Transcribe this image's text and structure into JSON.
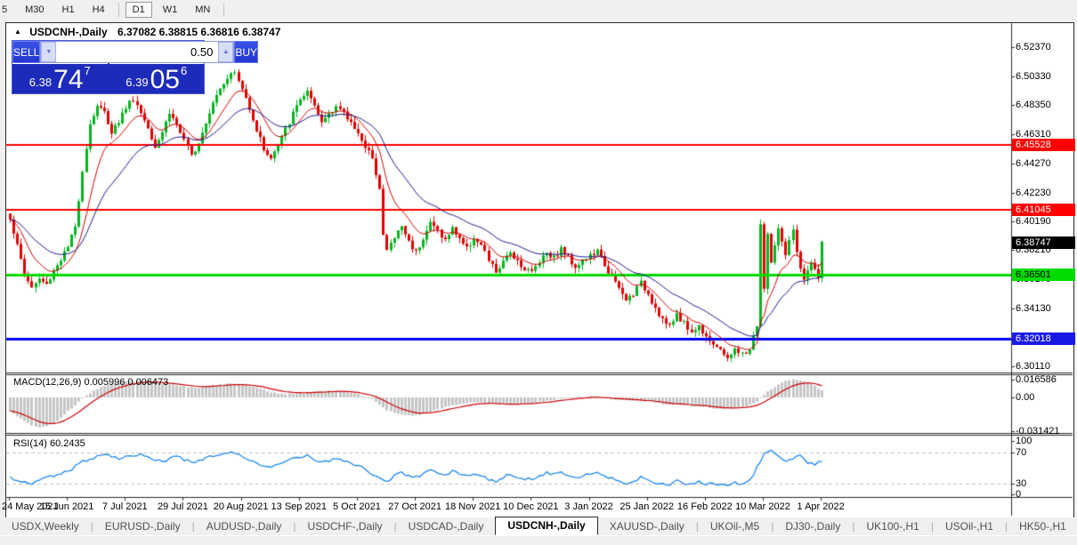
{
  "toolbar": {
    "periods": [
      "5",
      "M30",
      "H1",
      "H4",
      "D1",
      "W1",
      "MN"
    ],
    "active": "D1",
    "separators_after": [
      "H4",
      "MN"
    ]
  },
  "chart_title": {
    "collapse_icon": "▲",
    "symbol": "USDCNH-,Daily",
    "ohlc": "6.37082 6.38815 6.36816 6.38747"
  },
  "trade_panel": {
    "sell_label": "SELL",
    "buy_label": "BUY",
    "volume": "0.50",
    "arrow_down_icon": "▼",
    "arrow_up_icon": "▲",
    "sell_price_small": "6.38",
    "sell_price_big": "74",
    "sell_price_sup": "7",
    "buy_price_small": "6.39",
    "buy_price_big": "05",
    "buy_price_sup": "6"
  },
  "price_axis": {
    "ticks": [
      "6.52370",
      "6.50330",
      "6.48350",
      "6.46310",
      "6.44270",
      "6.42230",
      "6.40190",
      "6.38210",
      "6.36170",
      "6.34130",
      "6.30110"
    ],
    "badges": [
      {
        "value": "6.45528",
        "bg": "#FF0000",
        "fg": "#FFFFFF"
      },
      {
        "value": "6.41045",
        "bg": "#FF0000",
        "fg": "#FFFFFF"
      },
      {
        "value": "6.38747",
        "bg": "#000000",
        "fg": "#FFFFFF"
      },
      {
        "value": "6.36501",
        "bg": "#00DC00",
        "fg": "#000000"
      },
      {
        "value": "6.32018",
        "bg": "#1A1AE6",
        "fg": "#FFFFFF"
      }
    ]
  },
  "indicators": {
    "macd_label": "MACD(12,26,9) 0.005996 0.006473",
    "rsi_label": "RSI(14) 60.2435",
    "macd_axis": [
      "0.016586",
      "0.00",
      "-0.031421"
    ],
    "rsi_axis": [
      "100",
      "70",
      "30",
      "0"
    ]
  },
  "date_axis": [
    "24 May 2021",
    "15 Jun 2021",
    "7 Jul 2021",
    "29 Jul 2021",
    "20 Aug 2021",
    "13 Sep 2021",
    "5 Oct 2021",
    "27 Oct 2021",
    "18 Nov 2021",
    "10 Dec 2021",
    "3 Jan 2022",
    "25 Jan 2022",
    "16 Feb 2022",
    "10 Mar 2022",
    "1 Apr 2022"
  ],
  "tabs": {
    "items": [
      "USDX,Weekly",
      "EURUSD-,Daily",
      "AUDUSD-,Daily",
      "USDCHF-,Daily",
      "USDCAD-,Daily",
      "USDCNH-,Daily",
      "XAUUSD-,Daily",
      "UKOil-,M5",
      "DJ30-,Daily",
      "UK100-,H1",
      "USOil-,H1",
      "HK50-,H1"
    ],
    "active": "USDCNH-,Daily",
    "left_arrow_icon": "◄",
    "right_arrow_icon": "►"
  },
  "colors": {
    "bull": "#00B41E",
    "bear": "#E00000",
    "ma_fast": "#D40000",
    "ma_slow": "#1A1A8C",
    "macd_hist": "#C6C6C6",
    "macd_signal": "#CC0000",
    "rsi_line": "#1C86EE",
    "level_dash": "#C0C0C0",
    "panel_border": "#2B2B2B"
  },
  "chart_data": [
    {
      "type": "candlestick",
      "title": "USDCNH-,Daily",
      "open": 6.37082,
      "high": 6.38815,
      "low": 6.36816,
      "close": 6.38747,
      "bars": 225,
      "ylim": [
        6.295,
        6.54
      ],
      "noise": 0.0022,
      "seed": 1337,
      "levels": [
        {
          "value": 6.45528,
          "color": "#FF0000",
          "width": 2
        },
        {
          "value": 6.41045,
          "color": "#FF0000",
          "width": 2
        },
        {
          "value": 6.36501,
          "color": "#00DC00",
          "width": 3
        },
        {
          "value": 6.32018,
          "color": "#0000FF",
          "width": 3
        }
      ],
      "ma_fast_period": 10,
      "ma_slow_period": 25,
      "close_waypoints": [
        [
          0,
          6.405
        ],
        [
          2,
          6.385
        ],
        [
          4,
          6.366
        ],
        [
          6,
          6.356
        ],
        [
          8,
          6.362
        ],
        [
          10,
          6.358
        ],
        [
          12,
          6.368
        ],
        [
          14,
          6.376
        ],
        [
          16,
          6.384
        ],
        [
          18,
          6.398
        ],
        [
          20,
          6.438
        ],
        [
          22,
          6.47
        ],
        [
          24,
          6.483
        ],
        [
          26,
          6.478
        ],
        [
          28,
          6.465
        ],
        [
          30,
          6.472
        ],
        [
          32,
          6.482
        ],
        [
          34,
          6.488
        ],
        [
          36,
          6.478
        ],
        [
          38,
          6.468
        ],
        [
          40,
          6.455
        ],
        [
          42,
          6.465
        ],
        [
          44,
          6.478
        ],
        [
          46,
          6.47
        ],
        [
          48,
          6.458
        ],
        [
          50,
          6.448
        ],
        [
          52,
          6.458
        ],
        [
          54,
          6.472
        ],
        [
          56,
          6.486
        ],
        [
          58,
          6.496
        ],
        [
          60,
          6.503
        ],
        [
          62,
          6.506
        ],
        [
          64,
          6.494
        ],
        [
          66,
          6.482
        ],
        [
          68,
          6.466
        ],
        [
          70,
          6.453
        ],
        [
          72,
          6.446
        ],
        [
          74,
          6.455
        ],
        [
          76,
          6.466
        ],
        [
          78,
          6.477
        ],
        [
          80,
          6.488
        ],
        [
          82,
          6.492
        ],
        [
          84,
          6.481
        ],
        [
          86,
          6.471
        ],
        [
          88,
          6.478
        ],
        [
          90,
          6.483
        ],
        [
          92,
          6.477
        ],
        [
          94,
          6.471
        ],
        [
          96,
          6.465
        ],
        [
          98,
          6.452
        ],
        [
          100,
          6.448
        ],
        [
          102,
          6.425
        ],
        [
          103,
          6.392
        ],
        [
          104,
          6.382
        ],
        [
          106,
          6.391
        ],
        [
          108,
          6.399
        ],
        [
          110,
          6.388
        ],
        [
          112,
          6.381
        ],
        [
          114,
          6.391
        ],
        [
          116,
          6.401
        ],
        [
          118,
          6.396
        ],
        [
          120,
          6.389
        ],
        [
          122,
          6.397
        ],
        [
          124,
          6.391
        ],
        [
          126,
          6.383
        ],
        [
          128,
          6.391
        ],
        [
          130,
          6.385
        ],
        [
          132,
          6.375
        ],
        [
          134,
          6.367
        ],
        [
          136,
          6.373
        ],
        [
          138,
          6.381
        ],
        [
          140,
          6.375
        ],
        [
          142,
          6.369
        ],
        [
          144,
          6.367
        ],
        [
          146,
          6.375
        ],
        [
          148,
          6.381
        ],
        [
          150,
          6.377
        ],
        [
          152,
          6.383
        ],
        [
          154,
          6.377
        ],
        [
          156,
          6.371
        ],
        [
          158,
          6.375
        ],
        [
          160,
          6.378
        ],
        [
          162,
          6.381
        ],
        [
          164,
          6.372
        ],
        [
          166,
          6.363
        ],
        [
          168,
          6.355
        ],
        [
          170,
          6.347
        ],
        [
          172,
          6.352
        ],
        [
          174,
          6.359
        ],
        [
          176,
          6.352
        ],
        [
          178,
          6.342
        ],
        [
          180,
          6.334
        ],
        [
          182,
          6.328
        ],
        [
          184,
          6.338
        ],
        [
          186,
          6.331
        ],
        [
          188,
          6.325
        ],
        [
          190,
          6.329
        ],
        [
          192,
          6.323
        ],
        [
          194,
          6.317
        ],
        [
          196,
          6.311
        ],
        [
          198,
          6.308
        ],
        [
          200,
          6.312
        ],
        [
          202,
          6.309
        ],
        [
          204,
          6.313
        ],
        [
          206,
          6.33
        ],
        [
          207,
          6.4
        ],
        [
          208,
          6.355
        ],
        [
          209,
          6.392
        ],
        [
          210,
          6.374
        ],
        [
          211,
          6.386
        ],
        [
          212,
          6.396
        ],
        [
          213,
          6.386
        ],
        [
          214,
          6.378
        ],
        [
          215,
          6.388
        ],
        [
          216,
          6.395
        ],
        [
          217,
          6.382
        ],
        [
          218,
          6.37
        ],
        [
          219,
          6.36
        ],
        [
          220,
          6.368
        ],
        [
          221,
          6.374
        ],
        [
          222,
          6.367
        ],
        [
          223,
          6.362
        ],
        [
          224,
          6.387
        ]
      ]
    },
    {
      "type": "bar",
      "title": "MACD(12,26,9)",
      "current_macd": 0.005996,
      "current_signal": 0.006473,
      "ylim": [
        -0.031421,
        0.016586
      ],
      "signal_period": 9,
      "noise": 0.0006,
      "seed": 2024,
      "waypoints": [
        [
          0,
          -0.013
        ],
        [
          2,
          -0.018
        ],
        [
          4,
          -0.022
        ],
        [
          6,
          -0.026
        ],
        [
          8,
          -0.028
        ],
        [
          10,
          -0.027
        ],
        [
          12,
          -0.024
        ],
        [
          14,
          -0.019
        ],
        [
          16,
          -0.013
        ],
        [
          18,
          -0.007
        ],
        [
          20,
          -0.001
        ],
        [
          22,
          0.004
        ],
        [
          24,
          0.008
        ],
        [
          26,
          0.011
        ],
        [
          28,
          0.013
        ],
        [
          32,
          0.015
        ],
        [
          36,
          0.016
        ],
        [
          40,
          0.014
        ],
        [
          44,
          0.012
        ],
        [
          48,
          0.01
        ],
        [
          52,
          0.009
        ],
        [
          56,
          0.011
        ],
        [
          60,
          0.013
        ],
        [
          64,
          0.012
        ],
        [
          68,
          0.009
        ],
        [
          72,
          0.005
        ],
        [
          76,
          0.003
        ],
        [
          80,
          0.004
        ],
        [
          84,
          0.005
        ],
        [
          88,
          0.006
        ],
        [
          92,
          0.006
        ],
        [
          96,
          0.003
        ],
        [
          100,
          -0.002
        ],
        [
          104,
          -0.012
        ],
        [
          108,
          -0.016
        ],
        [
          112,
          -0.017
        ],
        [
          116,
          -0.013
        ],
        [
          120,
          -0.009
        ],
        [
          124,
          -0.006
        ],
        [
          128,
          -0.004
        ],
        [
          132,
          -0.005
        ],
        [
          136,
          -0.007
        ],
        [
          140,
          -0.006
        ],
        [
          144,
          -0.005
        ],
        [
          148,
          -0.003
        ],
        [
          152,
          -0.001
        ],
        [
          156,
          0.0
        ],
        [
          160,
          0.001
        ],
        [
          164,
          -0.001
        ],
        [
          168,
          -0.002
        ],
        [
          172,
          -0.003
        ],
        [
          176,
          -0.004
        ],
        [
          180,
          -0.006
        ],
        [
          184,
          -0.007
        ],
        [
          188,
          -0.008
        ],
        [
          192,
          -0.009
        ],
        [
          196,
          -0.011
        ],
        [
          200,
          -0.01
        ],
        [
          204,
          -0.007
        ],
        [
          206,
          -0.004
        ],
        [
          208,
          0.003
        ],
        [
          210,
          0.008
        ],
        [
          212,
          0.012
        ],
        [
          214,
          0.015
        ],
        [
          216,
          0.017
        ],
        [
          218,
          0.016
        ],
        [
          220,
          0.014
        ],
        [
          222,
          0.011
        ],
        [
          224,
          0.006
        ]
      ]
    },
    {
      "type": "line",
      "title": "RSI(14)",
      "current": 60.2435,
      "ylim": [
        0,
        100
      ],
      "levels": [
        70,
        30
      ],
      "noise": 2.0,
      "seed": 777,
      "waypoints": [
        [
          0,
          38
        ],
        [
          2,
          35
        ],
        [
          4,
          32
        ],
        [
          6,
          30
        ],
        [
          8,
          34
        ],
        [
          10,
          38
        ],
        [
          12,
          40
        ],
        [
          14,
          42
        ],
        [
          16,
          46
        ],
        [
          18,
          52
        ],
        [
          20,
          58
        ],
        [
          22,
          62
        ],
        [
          24,
          65
        ],
        [
          26,
          67
        ],
        [
          28,
          66
        ],
        [
          30,
          63
        ],
        [
          32,
          65
        ],
        [
          34,
          67
        ],
        [
          36,
          68
        ],
        [
          38,
          64
        ],
        [
          40,
          60
        ],
        [
          42,
          58
        ],
        [
          44,
          62
        ],
        [
          46,
          64
        ],
        [
          48,
          61
        ],
        [
          50,
          57
        ],
        [
          52,
          59
        ],
        [
          54,
          63
        ],
        [
          56,
          66
        ],
        [
          58,
          68
        ],
        [
          60,
          69
        ],
        [
          62,
          70
        ],
        [
          64,
          66
        ],
        [
          66,
          61
        ],
        [
          68,
          56
        ],
        [
          70,
          52
        ],
        [
          72,
          50
        ],
        [
          74,
          54
        ],
        [
          76,
          58
        ],
        [
          78,
          62
        ],
        [
          80,
          65
        ],
        [
          82,
          66
        ],
        [
          84,
          61
        ],
        [
          86,
          57
        ],
        [
          88,
          60
        ],
        [
          90,
          62
        ],
        [
          92,
          59
        ],
        [
          94,
          56
        ],
        [
          96,
          54
        ],
        [
          98,
          48
        ],
        [
          100,
          42
        ],
        [
          102,
          36
        ],
        [
          104,
          33
        ],
        [
          106,
          40
        ],
        [
          108,
          44
        ],
        [
          110,
          40
        ],
        [
          112,
          38
        ],
        [
          114,
          43
        ],
        [
          116,
          48
        ],
        [
          118,
          45
        ],
        [
          120,
          42
        ],
        [
          122,
          46
        ],
        [
          124,
          43
        ],
        [
          126,
          39
        ],
        [
          128,
          44
        ],
        [
          130,
          41
        ],
        [
          132,
          36
        ],
        [
          134,
          33
        ],
        [
          136,
          38
        ],
        [
          138,
          42
        ],
        [
          140,
          39
        ],
        [
          142,
          36
        ],
        [
          144,
          35
        ],
        [
          146,
          40
        ],
        [
          148,
          44
        ],
        [
          150,
          42
        ],
        [
          152,
          45
        ],
        [
          154,
          42
        ],
        [
          156,
          38
        ],
        [
          158,
          41
        ],
        [
          160,
          43
        ],
        [
          162,
          45
        ],
        [
          164,
          40
        ],
        [
          166,
          36
        ],
        [
          168,
          33
        ],
        [
          170,
          30
        ],
        [
          172,
          34
        ],
        [
          174,
          38
        ],
        [
          176,
          35
        ],
        [
          178,
          31
        ],
        [
          180,
          29
        ],
        [
          182,
          28
        ],
        [
          184,
          33
        ],
        [
          186,
          31
        ],
        [
          188,
          29
        ],
        [
          190,
          32
        ],
        [
          192,
          30
        ],
        [
          194,
          29
        ],
        [
          196,
          28
        ],
        [
          198,
          28
        ],
        [
          200,
          31
        ],
        [
          202,
          30
        ],
        [
          204,
          33
        ],
        [
          206,
          50
        ],
        [
          208,
          68
        ],
        [
          210,
          73
        ],
        [
          212,
          64
        ],
        [
          214,
          60
        ],
        [
          216,
          63
        ],
        [
          218,
          65
        ],
        [
          220,
          58
        ],
        [
          222,
          55
        ],
        [
          224,
          60
        ]
      ]
    }
  ]
}
